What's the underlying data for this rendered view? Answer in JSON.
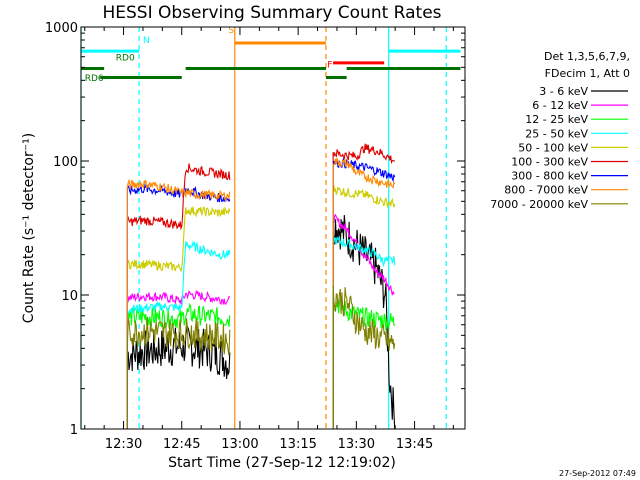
{
  "chart_data": {
    "type": "line",
    "title": "HESSI Observing Summary Count Rates",
    "xlabel": "Start Time (27-Sep-12 12:19:02)",
    "ylabel": "Count Rate (s⁻¹ detector⁻¹)",
    "x_range": [
      "12:19:02",
      "13:58:00"
    ],
    "ylim": [
      1,
      1000
    ],
    "y_scale": "log",
    "x_ticks": [
      "12:30",
      "12:45",
      "13:00",
      "13:15",
      "13:30",
      "13:45"
    ],
    "y_ticks": [
      "1",
      "10",
      "100",
      "1000"
    ],
    "grid": false,
    "legend_position": "right",
    "legend_header": [
      "Det 1,3,5,6,7,9,",
      "FDecim 1, Att 0"
    ],
    "series": [
      {
        "name": "3 - 6 keV",
        "color": "#000000",
        "segments": [
          {
            "points": [
              [
                "12:31:00",
                3.6
              ],
              [
                "12:35:00",
                3.8
              ],
              [
                "12:40:00",
                4.0
              ],
              [
                "12:45:30",
                4.2
              ],
              [
                "12:50:00",
                4.0
              ],
              [
                "12:55:30",
                3.5
              ],
              [
                "12:57:30",
                3.0
              ]
            ]
          },
          {
            "points": [
              [
                "13:24:00",
                35
              ],
              [
                "13:28:00",
                27
              ],
              [
                "13:32:00",
                20
              ],
              [
                "13:35:00",
                16
              ],
              [
                "13:37:30",
                10
              ],
              [
                "13:38:30",
                2.5
              ],
              [
                "13:40:00",
                1.1
              ]
            ]
          }
        ]
      },
      {
        "name": "6 - 12 keV",
        "color": "#ff00ff",
        "segments": [
          {
            "points": [
              [
                "12:31:00",
                9.5
              ],
              [
                "12:35:00",
                9.8
              ],
              [
                "12:40:00",
                9.7
              ],
              [
                "12:45:00",
                9.0
              ],
              [
                "12:46:00",
                10.2
              ],
              [
                "12:50:00",
                9.8
              ],
              [
                "12:55:00",
                9.3
              ],
              [
                "12:57:30",
                9.0
              ]
            ]
          },
          {
            "points": [
              [
                "13:24:00",
                38
              ],
              [
                "13:28:00",
                30
              ],
              [
                "13:32:00",
                20
              ],
              [
                "13:35:00",
                15
              ],
              [
                "13:37:00",
                13.5
              ],
              [
                "13:40:00",
                10
              ]
            ]
          }
        ]
      },
      {
        "name": "12 - 25 keV",
        "color": "#00ff00",
        "segments": [
          {
            "points": [
              [
                "12:31:00",
                6.8
              ],
              [
                "12:35:00",
                6.9
              ],
              [
                "12:40:00",
                6.8
              ],
              [
                "12:45:00",
                6.6
              ],
              [
                "12:46:00",
                7.3
              ],
              [
                "12:50:00",
                7.0
              ],
              [
                "12:55:00",
                6.8
              ],
              [
                "12:57:30",
                6.6
              ]
            ]
          },
          {
            "points": [
              [
                "13:24:00",
                9.0
              ],
              [
                "13:28:00",
                7.5
              ],
              [
                "13:32:00",
                6.8
              ],
              [
                "13:35:00",
                6.6
              ],
              [
                "13:37:00",
                6.5
              ],
              [
                "13:40:00",
                6.3
              ]
            ]
          }
        ]
      },
      {
        "name": "25 - 50 keV",
        "color": "#00ffff",
        "segments": [
          {
            "points": [
              [
                "12:31:00",
                7.8
              ],
              [
                "12:35:00",
                8.0
              ],
              [
                "12:40:00",
                8.2
              ],
              [
                "12:45:00",
                8.0
              ],
              [
                "12:46:00",
                24
              ],
              [
                "12:50:00",
                22
              ],
              [
                "12:55:00",
                20
              ],
              [
                "12:57:30",
                20
              ]
            ]
          },
          {
            "points": [
              [
                "13:24:00",
                26
              ],
              [
                "13:28:00",
                24
              ],
              [
                "13:32:00",
                22
              ],
              [
                "13:35:00",
                20
              ],
              [
                "13:37:00",
                18
              ],
              [
                "13:40:00",
                18
              ]
            ]
          }
        ]
      },
      {
        "name": "50 - 100 keV",
        "color": "#cccc00",
        "segments": [
          {
            "points": [
              [
                "12:31:00",
                17
              ],
              [
                "12:35:00",
                17
              ],
              [
                "12:40:00",
                16.5
              ],
              [
                "12:45:00",
                16
              ],
              [
                "12:46:00",
                43
              ],
              [
                "12:50:00",
                42
              ],
              [
                "12:55:00",
                41
              ],
              [
                "12:57:30",
                42
              ]
            ]
          },
          {
            "points": [
              [
                "13:24:00",
                62
              ],
              [
                "13:28:00",
                58
              ],
              [
                "13:32:00",
                56
              ],
              [
                "13:35:00",
                52
              ],
              [
                "13:37:30",
                49
              ],
              [
                "13:40:00",
                48
              ]
            ]
          }
        ]
      },
      {
        "name": "100 - 300 keV",
        "color": "#dd0000",
        "segments": [
          {
            "points": [
              [
                "12:31:00",
                35
              ],
              [
                "12:35:00",
                36
              ],
              [
                "12:40:00",
                35
              ],
              [
                "12:45:00",
                33
              ],
              [
                "12:46:00",
                90
              ],
              [
                "12:50:00",
                84
              ],
              [
                "12:55:00",
                80
              ],
              [
                "12:57:30",
                78
              ]
            ]
          },
          {
            "points": [
              [
                "13:24:00",
                115
              ],
              [
                "13:28:00",
                110
              ],
              [
                "13:30:00",
                108
              ],
              [
                "13:32:00",
                125
              ],
              [
                "13:35:00",
                120
              ],
              [
                "13:37:30",
                110
              ],
              [
                "13:40:00",
                100
              ]
            ]
          }
        ]
      },
      {
        "name": "300 - 800 keV",
        "color": "#0000ff",
        "segments": [
          {
            "points": [
              [
                "12:31:00",
                60
              ],
              [
                "12:35:00",
                62
              ],
              [
                "12:40:00",
                60
              ],
              [
                "12:45:00",
                56
              ],
              [
                "12:46:00",
                62
              ],
              [
                "12:50:00",
                56
              ],
              [
                "12:55:00",
                53
              ],
              [
                "12:57:30",
                52
              ]
            ]
          },
          {
            "points": [
              [
                "13:24:00",
                98
              ],
              [
                "13:28:00",
                95
              ],
              [
                "13:30:00",
                92
              ],
              [
                "13:32:00",
                90
              ],
              [
                "13:35:00",
                85
              ],
              [
                "13:37:30",
                80
              ],
              [
                "13:40:00",
                75
              ]
            ]
          }
        ]
      },
      {
        "name": "800 - 7000 keV",
        "color": "#ff8800",
        "segments": [
          {
            "points": [
              [
                "12:31:00",
                66
              ],
              [
                "12:35:00",
                68
              ],
              [
                "12:40:00",
                64
              ],
              [
                "12:45:00",
                58
              ],
              [
                "12:46:00",
                58
              ],
              [
                "12:50:00",
                56
              ],
              [
                "12:55:00",
                55
              ],
              [
                "12:57:30",
                55
              ]
            ]
          },
          {
            "points": [
              [
                "13:24:00",
                100
              ],
              [
                "13:28:00",
                95
              ],
              [
                "13:30:00",
                82
              ],
              [
                "13:32:00",
                77
              ],
              [
                "13:35:00",
                72
              ],
              [
                "13:37:30",
                68
              ],
              [
                "13:40:00",
                65
              ]
            ]
          }
        ]
      },
      {
        "name": "7000 - 20000 keV",
        "color": "#808000",
        "segments": [
          {
            "points": [
              [
                "12:31:00",
                5.2
              ],
              [
                "12:35:00",
                5.4
              ],
              [
                "12:40:00",
                5.3
              ],
              [
                "12:45:00",
                5.2
              ],
              [
                "12:46:00",
                5.3
              ],
              [
                "12:50:00",
                5.0
              ],
              [
                "12:55:00",
                4.8
              ],
              [
                "12:57:30",
                4.5
              ]
            ]
          },
          {
            "points": [
              [
                "13:24:00",
                10
              ],
              [
                "13:28:00",
                8.5
              ],
              [
                "13:30:00",
                6.5
              ],
              [
                "13:32:00",
                5.5
              ],
              [
                "13:35:00",
                5.0
              ],
              [
                "13:37:30",
                4.6
              ],
              [
                "13:40:00",
                4.2
              ]
            ]
          }
        ]
      }
    ],
    "time_markers": [
      {
        "time": "12:19:02",
        "color": "#00ffff",
        "style": "solid"
      },
      {
        "time": "12:34:00",
        "color": "#00ffff",
        "style": "dashed"
      },
      {
        "time": "12:58:40",
        "color": "#ff8800",
        "style": "solid"
      },
      {
        "time": "13:22:10",
        "color": "#ff8800",
        "style": "dashed"
      },
      {
        "time": "13:38:20",
        "color": "#00ffff",
        "style": "solid"
      },
      {
        "time": "13:53:10",
        "color": "#00ffff",
        "style": "dashed"
      }
    ],
    "flag_bars": [
      {
        "label": "N",
        "color": "#00ffff",
        "y": 660,
        "label_y": 760,
        "label_at": "12:35:00",
        "spans": [
          [
            "12:19:02",
            "12:34:00"
          ],
          [
            "13:38:20",
            "13:56:50"
          ]
        ]
      },
      {
        "label": "S",
        "color": "#ff8800",
        "y": 760,
        "label_y": 900,
        "label_at": "12:57:00",
        "spans": [
          [
            "12:58:40",
            "13:22:10"
          ]
        ]
      },
      {
        "label": "F",
        "color": "#ff0000",
        "y": 540,
        "label_y": 500,
        "label_at": "13:22:30",
        "spans": [
          [
            "13:24:00",
            "13:37:10"
          ]
        ]
      },
      {
        "label": "RD0",
        "color": "#007000",
        "y": 490,
        "label_y": 560,
        "label_at": "12:28:00",
        "spans": [
          [
            "12:19:02",
            "12:25:00"
          ],
          [
            "12:46:00",
            "13:22:10"
          ],
          [
            "13:27:30",
            "13:56:50"
          ]
        ]
      },
      {
        "label": "RD6",
        "color": "#007000",
        "y": 420,
        "label_y": 395,
        "label_at": "12:20:00",
        "spans": [
          [
            "12:24:00",
            "12:45:00"
          ],
          [
            "13:22:10",
            "13:27:30"
          ]
        ]
      }
    ],
    "timestamp": "27-Sep-2012 07:49"
  }
}
